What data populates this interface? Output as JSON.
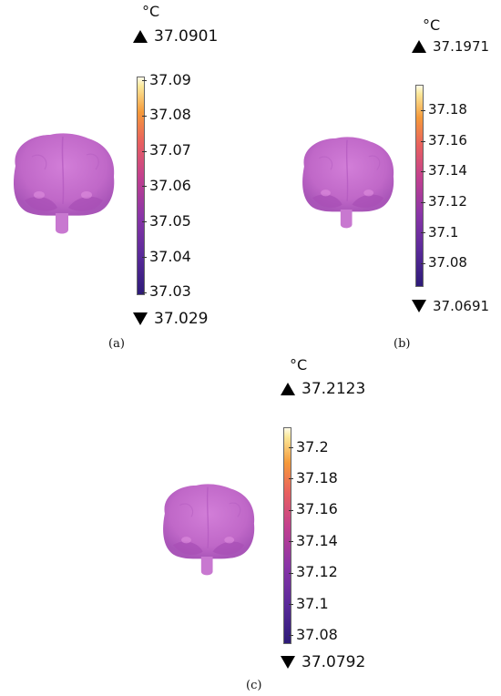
{
  "panels": [
    {
      "caption": "(a)",
      "unit": "°C",
      "max_label": "37.0901",
      "min_label": "37.029",
      "ticks": [
        "37.09",
        "37.08",
        "37.07",
        "37.06",
        "37.05",
        "37.04",
        "37.03"
      ]
    },
    {
      "caption": "(b)",
      "unit": "°C",
      "max_label": "37.1971",
      "min_label": "37.0691",
      "ticks": [
        "37.18",
        "37.16",
        "37.14",
        "37.12",
        "37.1",
        "37.08"
      ]
    },
    {
      "caption": "(c)",
      "unit": "°C",
      "max_label": "37.2123",
      "min_label": "37.0792",
      "ticks": [
        "37.2",
        "37.18",
        "37.16",
        "37.14",
        "37.12",
        "37.1",
        "37.08"
      ]
    }
  ],
  "colors": {
    "colormap_low": "#2d1b78",
    "colormap_mid": "#c2408f",
    "colormap_high": "#fffbe8",
    "brain": "#c56bd0"
  }
}
